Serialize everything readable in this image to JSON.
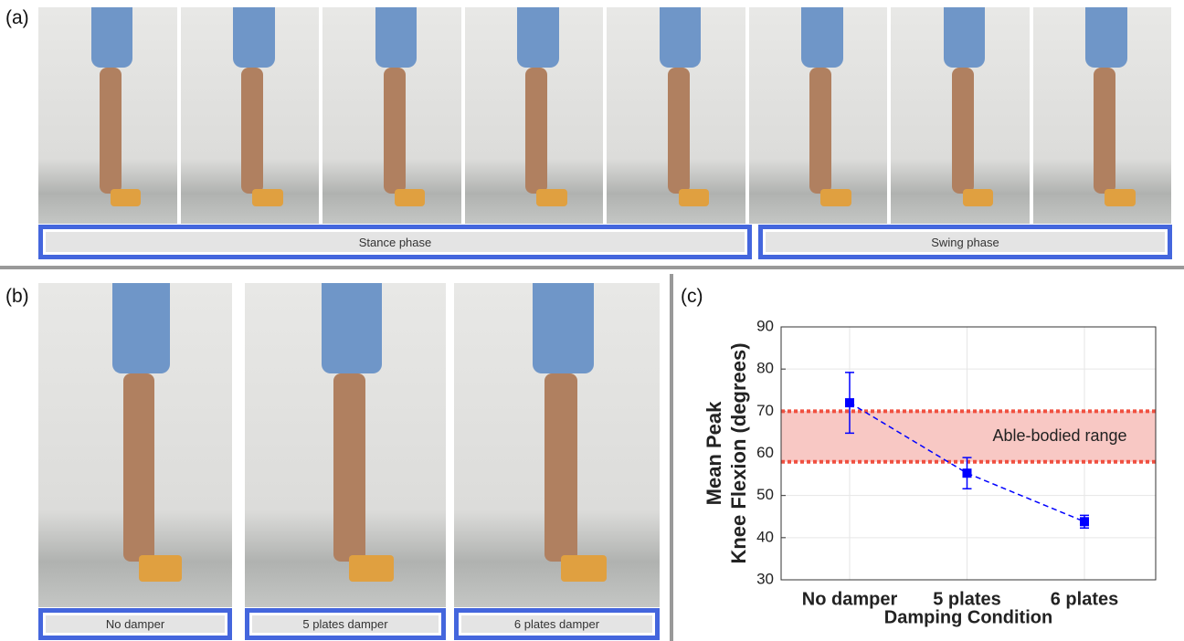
{
  "panel_a": {
    "label": "(a)",
    "stance": "Stance phase",
    "swing": "Swing phase"
  },
  "panel_b": {
    "label": "(b)",
    "captions": [
      "No damper",
      "5 plates damper",
      "6 plates damper"
    ]
  },
  "panel_c": {
    "label": "(c)"
  },
  "chart_data": {
    "type": "line",
    "categories": [
      "No damper",
      "5 plates",
      "6 plates"
    ],
    "values": [
      72,
      55.3,
      43.8
    ],
    "errors": [
      7.2,
      3.7,
      1.5
    ],
    "color": "#0000ff",
    "ylim": [
      30,
      90
    ],
    "yticks": [
      30,
      40,
      50,
      60,
      70,
      80,
      90
    ],
    "ylabel": [
      "Mean Peak",
      "Knee Flexion (degrees)"
    ],
    "xlabel": "Damping Condition",
    "grid": true,
    "band": {
      "range": [
        58,
        70
      ],
      "label": "Able-bodied range",
      "color": "#f8c8c4",
      "line_color": "#f05040"
    }
  }
}
